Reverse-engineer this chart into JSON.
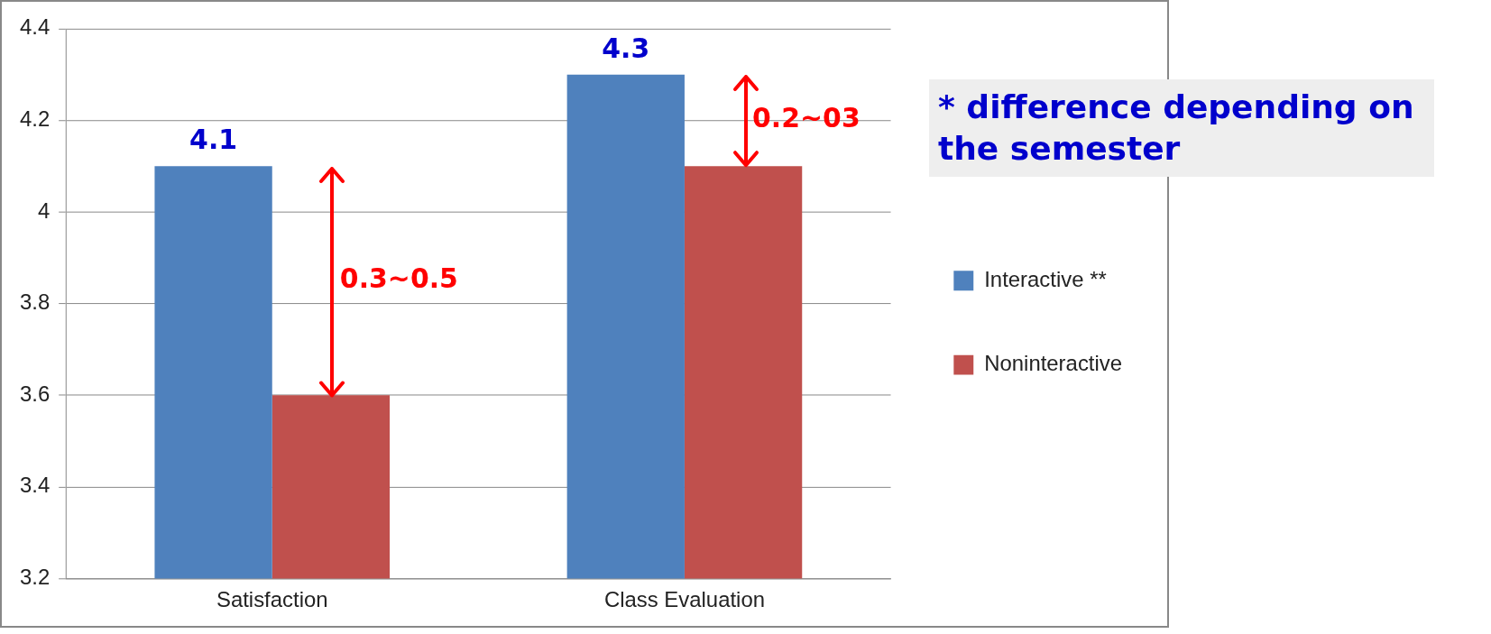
{
  "chart_data": {
    "type": "bar",
    "categories": [
      "Satisfaction",
      "Class Evaluation"
    ],
    "series": [
      {
        "name": "Interactive **",
        "color": "#4f81bd",
        "values": [
          4.1,
          4.3
        ],
        "value_labels": [
          "4.1",
          "4.3"
        ]
      },
      {
        "name": "Noninteractive",
        "color": "#c0504d",
        "values": [
          3.6,
          4.1
        ]
      }
    ],
    "ylim": [
      3.2,
      4.4
    ],
    "yticks": [
      3.2,
      3.4,
      3.6,
      3.8,
      4,
      4.2,
      4.4
    ],
    "grid": "y",
    "legend": "right",
    "annotations": [
      {
        "text": "0.3~0.5",
        "x": "Satisfaction",
        "y": 3.85
      },
      {
        "text": "0.2~03",
        "x": "Class Evaluation",
        "y": 4.2
      },
      "* difference depending on the semester"
    ]
  }
}
